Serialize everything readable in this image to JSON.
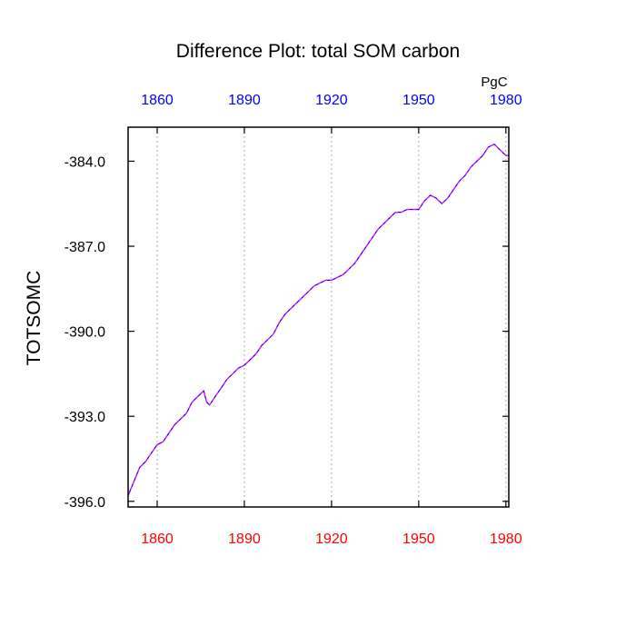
{
  "chart_data": {
    "type": "line",
    "title": "Difference Plot: total SOM carbon",
    "units_label": "PgC",
    "ylabel": "TOTSOMC",
    "xlim": [
      1850,
      1981
    ],
    "ylim": [
      -396.2,
      -382.8
    ],
    "x_ticks": [
      1860,
      1890,
      1920,
      1950,
      1980
    ],
    "x_tick_labels": [
      "1860",
      "1890",
      "1920",
      "1950",
      "1980"
    ],
    "y_ticks": [
      -384.0,
      -387.0,
      -390.0,
      -393.0,
      -396.0
    ],
    "y_tick_labels": [
      "-384.0",
      "-387.0",
      "-390.0",
      "-393.0",
      "-396.0"
    ],
    "grid": "vertical dotted at x ticks",
    "colors": {
      "bottom_tick_labels": "#ff0000",
      "top_tick_labels": "#0000ff",
      "series_a": "#0000ff",
      "series_b": "#ff00ff",
      "grid": "#aaaaaa",
      "axes": "#000000"
    },
    "series": [
      {
        "values_x": [
          1850,
          1852,
          1854,
          1856,
          1858,
          1860,
          1862,
          1864,
          1866,
          1868,
          1870,
          1872,
          1874,
          1876,
          1877,
          1878,
          1880,
          1882,
          1884,
          1886,
          1888,
          1890,
          1892,
          1894,
          1896,
          1898,
          1900,
          1902,
          1904,
          1906,
          1908,
          1910,
          1912,
          1914,
          1916,
          1918,
          1920,
          1922,
          1924,
          1926,
          1928,
          1930,
          1932,
          1934,
          1936,
          1938,
          1940,
          1942,
          1944,
          1946,
          1948,
          1950,
          1952,
          1954,
          1956,
          1958,
          1960,
          1962,
          1964,
          1966,
          1968,
          1970,
          1972,
          1974,
          1976,
          1978,
          1980,
          1981
        ],
        "values_y": [
          -395.8,
          -395.3,
          -394.8,
          -394.6,
          -394.3,
          -394.0,
          -393.9,
          -393.6,
          -393.3,
          -393.1,
          -392.9,
          -392.5,
          -392.3,
          -392.1,
          -392.5,
          -392.6,
          -392.3,
          -392.0,
          -391.7,
          -391.5,
          -391.3,
          -391.2,
          -391.0,
          -390.8,
          -390.5,
          -390.3,
          -390.1,
          -389.7,
          -389.4,
          -389.2,
          -389.0,
          -388.8,
          -388.6,
          -388.4,
          -388.3,
          -388.2,
          -388.2,
          -388.1,
          -388.0,
          -387.8,
          -387.6,
          -387.3,
          -387.0,
          -386.7,
          -386.4,
          -386.2,
          -386.0,
          -385.8,
          -385.8,
          -385.7,
          -385.7,
          -385.7,
          -385.4,
          -385.2,
          -385.3,
          -385.5,
          -385.3,
          -385.0,
          -384.7,
          -384.5,
          -384.2,
          -384.0,
          -383.8,
          -383.5,
          -383.4,
          -383.6,
          -383.8,
          -383.8
        ]
      }
    ]
  }
}
